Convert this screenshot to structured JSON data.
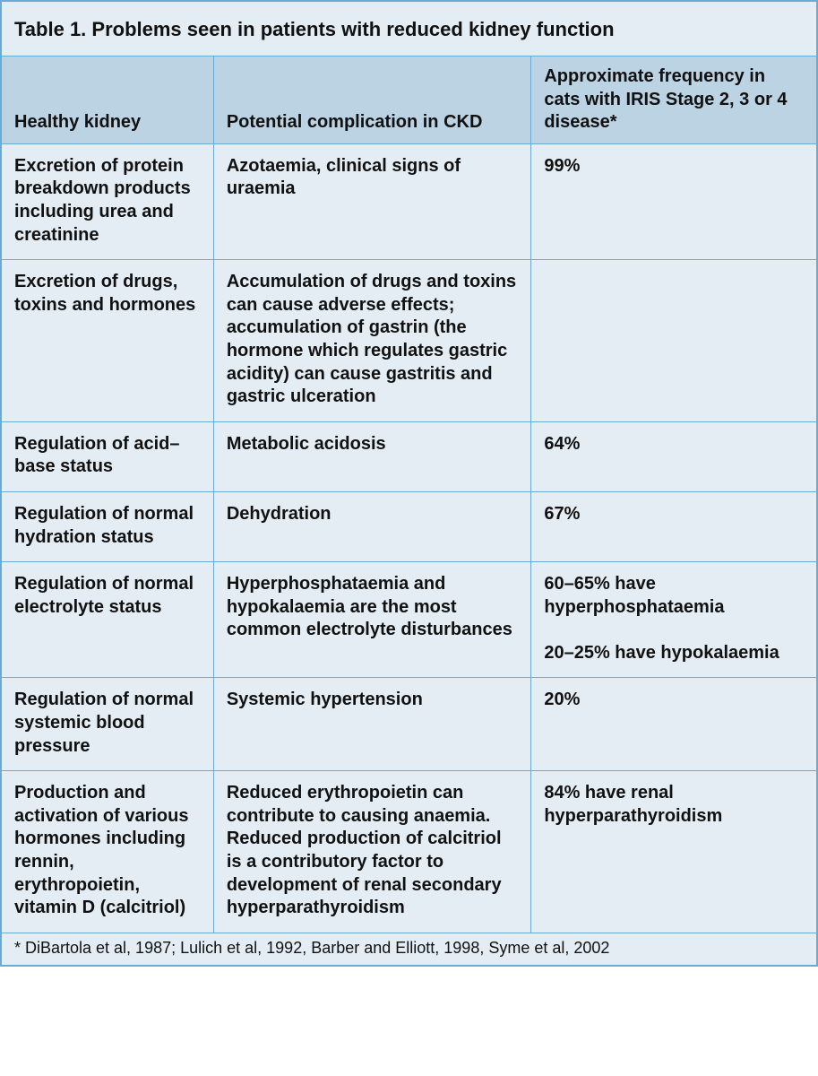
{
  "table": {
    "title": "Table 1. Problems seen in patients with reduced kidney function",
    "title_fontsize": 22,
    "header_bg": "#bcd3e4",
    "body_bg": "#e4edf4",
    "border_color": "#6babd3",
    "text_color": "#111111",
    "font_family": "Arial, Helvetica, sans-serif",
    "cell_fontsize": 20,
    "footnote_fontsize": 18,
    "col_widths_pct": [
      26,
      39,
      35
    ],
    "columns": [
      "Healthy kidney",
      "Potential complication in CKD",
      "Approximate frequency in cats with IRIS Stage 2, 3 or 4 disease*"
    ],
    "rows": [
      {
        "c1": "Excretion of protein breakdown products including urea and creatinine",
        "c2": "Azotaemia, clinical signs of uraemia",
        "c3": "99%"
      },
      {
        "c1": "Excretion of drugs, toxins and hormones",
        "c2": "Accumulation of drugs and toxins can cause adverse effects; accumulation of gastrin (the hormone which regulates gastric acidity) can cause gastritis and gastric ulceration",
        "c3": ""
      },
      {
        "c1": "Regulation of acid–base status",
        "c2": "Metabolic acidosis",
        "c3": "64%"
      },
      {
        "c1": "Regulation of normal hydration status",
        "c2": "Dehydration",
        "c3": "67%"
      },
      {
        "c1": "Regulation of normal electrolyte status",
        "c2": "Hyperphosphataemia and hypokalaemia are the most common electrolyte disturbances",
        "c3": "60–65% have hyperphosphataemia\n\n20–25% have hypokalaemia"
      },
      {
        "c1": "Regulation of normal systemic blood pressure",
        "c2": "Systemic hypertension",
        "c3": "20%"
      },
      {
        "c1": "Production and activation of various hormones including rennin, erythropoietin, vitamin D (calcitriol)",
        "c2": "Reduced erythropoietin can contribute to causing anaemia. Reduced production of calcitriol is a contributory factor to development of renal secondary hyperparathyroidism",
        "c3": "84% have renal hyperparathyroidism"
      }
    ],
    "footnote": "* DiBartola et al, 1987; Lulich et al, 1992, Barber and Elliott, 1998, Syme et al, 2002"
  }
}
